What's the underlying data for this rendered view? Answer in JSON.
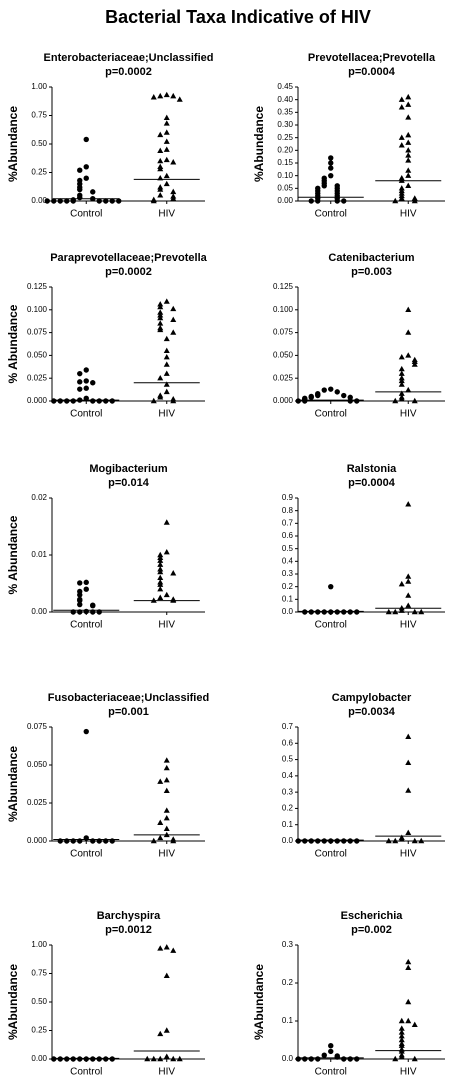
{
  "title": "Bacterial Taxa Indicative of HIV",
  "chart_data": [
    {
      "type": "strip",
      "title": "Enterobacteriaceae;Unclassified",
      "subtitle": "p=0.0002",
      "ylabel": "%Abundance",
      "ylim": [
        0,
        1
      ],
      "yticks": [
        {
          "value": 0,
          "label": "0.00"
        },
        0.25,
        {
          "value": 0.5,
          "label": "0.50"
        },
        0.75,
        {
          "value": 1,
          "label": "1.00"
        }
      ],
      "series": [
        {
          "name": "Control",
          "marker": "circle",
          "median": 0.02,
          "values": [
            0.54,
            0.3,
            0.27,
            0.2,
            0.18,
            0.15,
            0.12,
            0.1,
            0.08,
            0.05,
            0.03,
            0.02,
            0.01,
            0,
            0,
            0,
            0,
            0,
            0,
            0,
            0,
            0
          ]
        },
        {
          "name": "HIV",
          "marker": "triangle",
          "median": 0.19,
          "values": [
            0.93,
            0.92,
            0.92,
            0.91,
            0.89,
            0.73,
            0.68,
            0.6,
            0.58,
            0.52,
            0.45,
            0.44,
            0.36,
            0.35,
            0.34,
            0.3,
            0.28,
            0.22,
            0.2,
            0.15,
            0.12,
            0.1,
            0.08,
            0.05,
            0.04,
            0.02,
            0.01,
            0
          ]
        }
      ]
    },
    {
      "type": "strip",
      "title": "Prevotellacea;Prevotella",
      "subtitle": "p=0.0004",
      "ylabel": "%Abundance",
      "ylim": [
        0,
        0.45
      ],
      "yticks": [
        {
          "value": 0,
          "label": "0.00"
        },
        0.05,
        {
          "value": 0.1,
          "label": "0.10"
        },
        0.15,
        {
          "value": 0.2,
          "label": "0.20"
        },
        0.25,
        {
          "value": 0.3,
          "label": "0.30"
        },
        0.35,
        {
          "value": 0.4,
          "label": "0.40"
        },
        0.45
      ],
      "series": [
        {
          "name": "Control",
          "marker": "circle",
          "median": 0.015,
          "values": [
            0.17,
            0.15,
            0.13,
            0.1,
            0.09,
            0.08,
            0.07,
            0.06,
            0.06,
            0.05,
            0.05,
            0.04,
            0.04,
            0.03,
            0.03,
            0.02,
            0.02,
            0.01,
            0.01,
            0,
            0,
            0,
            0
          ]
        },
        {
          "name": "HIV",
          "marker": "triangle",
          "median": 0.08,
          "values": [
            0.41,
            0.4,
            0.38,
            0.37,
            0.33,
            0.26,
            0.25,
            0.23,
            0.22,
            0.2,
            0.18,
            0.16,
            0.12,
            0.1,
            0.09,
            0.08,
            0.06,
            0.05,
            0.04,
            0.03,
            0.02,
            0.01,
            0.01,
            0,
            0
          ]
        }
      ]
    },
    {
      "type": "strip",
      "title": "Paraprevotellaceae;Prevotella",
      "subtitle": "p=0.0002",
      "ylabel": "% Abundance",
      "ylim": [
        0,
        0.125
      ],
      "yticks": [
        {
          "value": 0,
          "label": "0.000"
        },
        0.025,
        {
          "value": 0.05,
          "label": "0.050"
        },
        0.075,
        {
          "value": 0.1,
          "label": "0.100"
        },
        0.125
      ],
      "series": [
        {
          "name": "Control",
          "marker": "circle",
          "median": 0.001,
          "values": [
            0.034,
            0.03,
            0.022,
            0.021,
            0.02,
            0.014,
            0.013,
            0.003,
            0.001,
            0,
            0,
            0,
            0,
            0,
            0,
            0,
            0
          ]
        },
        {
          "name": "HIV",
          "marker": "triangle",
          "median": 0.02,
          "values": [
            0.109,
            0.106,
            0.103,
            0.101,
            0.097,
            0.094,
            0.091,
            0.089,
            0.085,
            0.08,
            0.078,
            0.075,
            0.068,
            0.055,
            0.048,
            0.04,
            0.03,
            0.025,
            0.018,
            0.01,
            0.006,
            0.004,
            0.002,
            0,
            0
          ]
        }
      ]
    },
    {
      "type": "strip",
      "title": "Catenibacterium",
      "subtitle": "p=0.003",
      "ylim": [
        0,
        0.125
      ],
      "yticks": [
        {
          "value": 0,
          "label": "0.000"
        },
        0.025,
        {
          "value": 0.05,
          "label": "0.050"
        },
        0.075,
        {
          "value": 0.1,
          "label": "0.100"
        },
        0.125
      ],
      "series": [
        {
          "name": "Control",
          "marker": "circle",
          "median": 0.001,
          "values": [
            0.013,
            0.012,
            0.01,
            0.008,
            0.007,
            0.006,
            0.006,
            0.005,
            0.004,
            0.004,
            0.003,
            0.002,
            0.001,
            0,
            0,
            0,
            0
          ]
        },
        {
          "name": "HIV",
          "marker": "triangle",
          "median": 0.01,
          "values": [
            0.1,
            0.075,
            0.05,
            0.048,
            0.045,
            0.043,
            0.04,
            0.035,
            0.03,
            0.025,
            0.022,
            0.018,
            0.012,
            0.008,
            0.004,
            0.002,
            0,
            0
          ]
        }
      ]
    },
    {
      "type": "strip",
      "title": "Mogibacterium",
      "subtitle": "p=0.014",
      "ylabel": "% Abundance",
      "ylim": [
        0,
        0.02
      ],
      "yticks": [
        {
          "value": 0,
          "label": "0.00"
        },
        0.01,
        0.02
      ],
      "series": [
        {
          "name": "Control",
          "marker": "circle",
          "median": 0.0003,
          "values": [
            0.0052,
            0.0051,
            0.004,
            0.0036,
            0.003,
            0.0022,
            0.002,
            0.0013,
            0.0012,
            0.0011,
            0.0001,
            0,
            0,
            0,
            0
          ]
        },
        {
          "name": "HIV",
          "marker": "triangle",
          "median": 0.002,
          "values": [
            0.0157,
            0.0105,
            0.01,
            0.0095,
            0.009,
            0.0083,
            0.0075,
            0.007,
            0.0068,
            0.006,
            0.0052,
            0.0048,
            0.004,
            0.003,
            0.0025,
            0.0022,
            0.002,
            0.002
          ]
        }
      ]
    },
    {
      "type": "strip",
      "title": "Ralstonia",
      "subtitle": "p=0.0004",
      "ylim": [
        0,
        0.9
      ],
      "yticks": [
        {
          "value": 0,
          "label": "0.0"
        },
        0.1,
        0.2,
        0.3,
        0.4,
        0.5,
        0.6,
        0.7,
        0.8,
        0.9
      ],
      "series": [
        {
          "name": "Control",
          "marker": "circle",
          "median": 0.005,
          "values": [
            0.2,
            0,
            0,
            0,
            0,
            0,
            0,
            0,
            0,
            0
          ]
        },
        {
          "name": "HIV",
          "marker": "triangle",
          "median": 0.03,
          "values": [
            0.85,
            0.28,
            0.24,
            0.22,
            0.13,
            0.05,
            0.03,
            0.01,
            0,
            0,
            0,
            0
          ]
        }
      ]
    },
    {
      "type": "strip",
      "title": "Fusobacteriaceae;Unclassified",
      "subtitle": "p=0.001",
      "ylabel": "%Abundance",
      "ylim": [
        0,
        0.075
      ],
      "yticks": [
        {
          "value": 0,
          "label": "0.000"
        },
        0.025,
        {
          "value": 0.05,
          "label": "0.050"
        },
        0.075
      ],
      "series": [
        {
          "name": "Control",
          "marker": "circle",
          "median": 0.001,
          "values": [
            0.072,
            0.002,
            0,
            0,
            0,
            0,
            0,
            0,
            0,
            0
          ]
        },
        {
          "name": "HIV",
          "marker": "triangle",
          "median": 0.004,
          "values": [
            0.053,
            0.048,
            0.04,
            0.039,
            0.033,
            0.02,
            0.015,
            0.012,
            0.008,
            0.004,
            0.002,
            0.001,
            0,
            0
          ]
        }
      ]
    },
    {
      "type": "strip",
      "title": "Campylobacter",
      "subtitle": "p=0.0034",
      "ylim": [
        0,
        0.7
      ],
      "yticks": [
        {
          "value": 0,
          "label": "0.0"
        },
        0.1,
        0.2,
        0.3,
        0.4,
        0.5,
        0.6,
        0.7
      ],
      "series": [
        {
          "name": "Control",
          "marker": "circle",
          "median": 0.005,
          "values": [
            0,
            0,
            0,
            0,
            0,
            0,
            0,
            0,
            0,
            0
          ]
        },
        {
          "name": "HIV",
          "marker": "triangle",
          "median": 0.03,
          "values": [
            0.64,
            0.48,
            0.31,
            0.05,
            0.02,
            0.01,
            0,
            0,
            0,
            0
          ]
        }
      ]
    },
    {
      "type": "strip",
      "title": "Barchyspira",
      "subtitle": "p=0.0012",
      "ylabel": "%Abundance",
      "ylim": [
        0,
        1
      ],
      "yticks": [
        {
          "value": 0,
          "label": "0.00"
        },
        0.25,
        {
          "value": 0.5,
          "label": "0.50"
        },
        0.75,
        {
          "value": 1,
          "label": "1.00"
        }
      ],
      "series": [
        {
          "name": "Control",
          "marker": "circle",
          "median": 0.005,
          "values": [
            0,
            0,
            0,
            0,
            0,
            0,
            0,
            0,
            0,
            0
          ]
        },
        {
          "name": "HIV",
          "marker": "triangle",
          "median": 0.07,
          "values": [
            0.98,
            0.97,
            0.95,
            0.73,
            0.25,
            0.22,
            0.02,
            0,
            0,
            0,
            0,
            0
          ]
        }
      ]
    },
    {
      "type": "strip",
      "title": "Escherichia",
      "subtitle": "p=0.002",
      "ylabel": "%Abundance",
      "ylim": [
        0,
        0.3
      ],
      "yticks": [
        {
          "value": 0,
          "label": "0.0"
        },
        0.1,
        0.2,
        0.3
      ],
      "series": [
        {
          "name": "Control",
          "marker": "circle",
          "median": 0.003,
          "values": [
            0.035,
            0.02,
            0.01,
            0.008,
            0.005,
            0,
            0,
            0,
            0,
            0,
            0,
            0
          ]
        },
        {
          "name": "HIV",
          "marker": "triangle",
          "median": 0.022,
          "values": [
            0.255,
            0.24,
            0.15,
            0.1,
            0.1,
            0.09,
            0.08,
            0.07,
            0.06,
            0.05,
            0.04,
            0.035,
            0.025,
            0.02,
            0.01,
            0.005,
            0,
            0
          ]
        }
      ]
    }
  ]
}
